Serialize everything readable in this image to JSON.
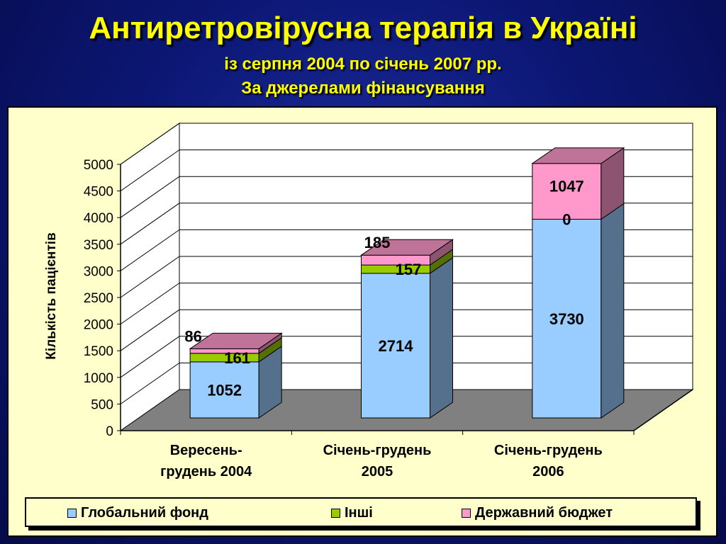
{
  "slide": {
    "title": "Антиретровірусна терапія в Україні",
    "subtitle_line1": "із серпня 2004 по січень 2007 рр.",
    "subtitle_line2": "За джерелами фінансування"
  },
  "chart_data": {
    "type": "bar",
    "stacked": true,
    "three_d": true,
    "categories": [
      "Вересень-\nгрудень 2004",
      "Січень-грудень\n2005",
      "Січень-грудень\n2006"
    ],
    "series": [
      {
        "name": "Глобальний фонд",
        "values": [
          1052,
          2714,
          3730
        ],
        "color": "#99ccff",
        "labels": [
          "1052",
          "2714",
          "3730"
        ]
      },
      {
        "name": "Інші",
        "values": [
          161,
          157,
          0
        ],
        "color": "#99cc00",
        "labels": [
          "161",
          "157",
          "0"
        ]
      },
      {
        "name": "Державний бюджет",
        "values": [
          86,
          185,
          1047
        ],
        "color": "#ff99cc",
        "labels": [
          "86",
          "185",
          "1047"
        ]
      }
    ],
    "ylabel": "Кількість пацієнтів",
    "ylim": [
      0,
      5000
    ],
    "yticks": [
      "0",
      "500",
      "1000",
      "1500",
      "2000",
      "2500",
      "3000",
      "3500",
      "4000",
      "4500",
      "5000"
    ],
    "grid": true,
    "legend_position": "bottom"
  }
}
